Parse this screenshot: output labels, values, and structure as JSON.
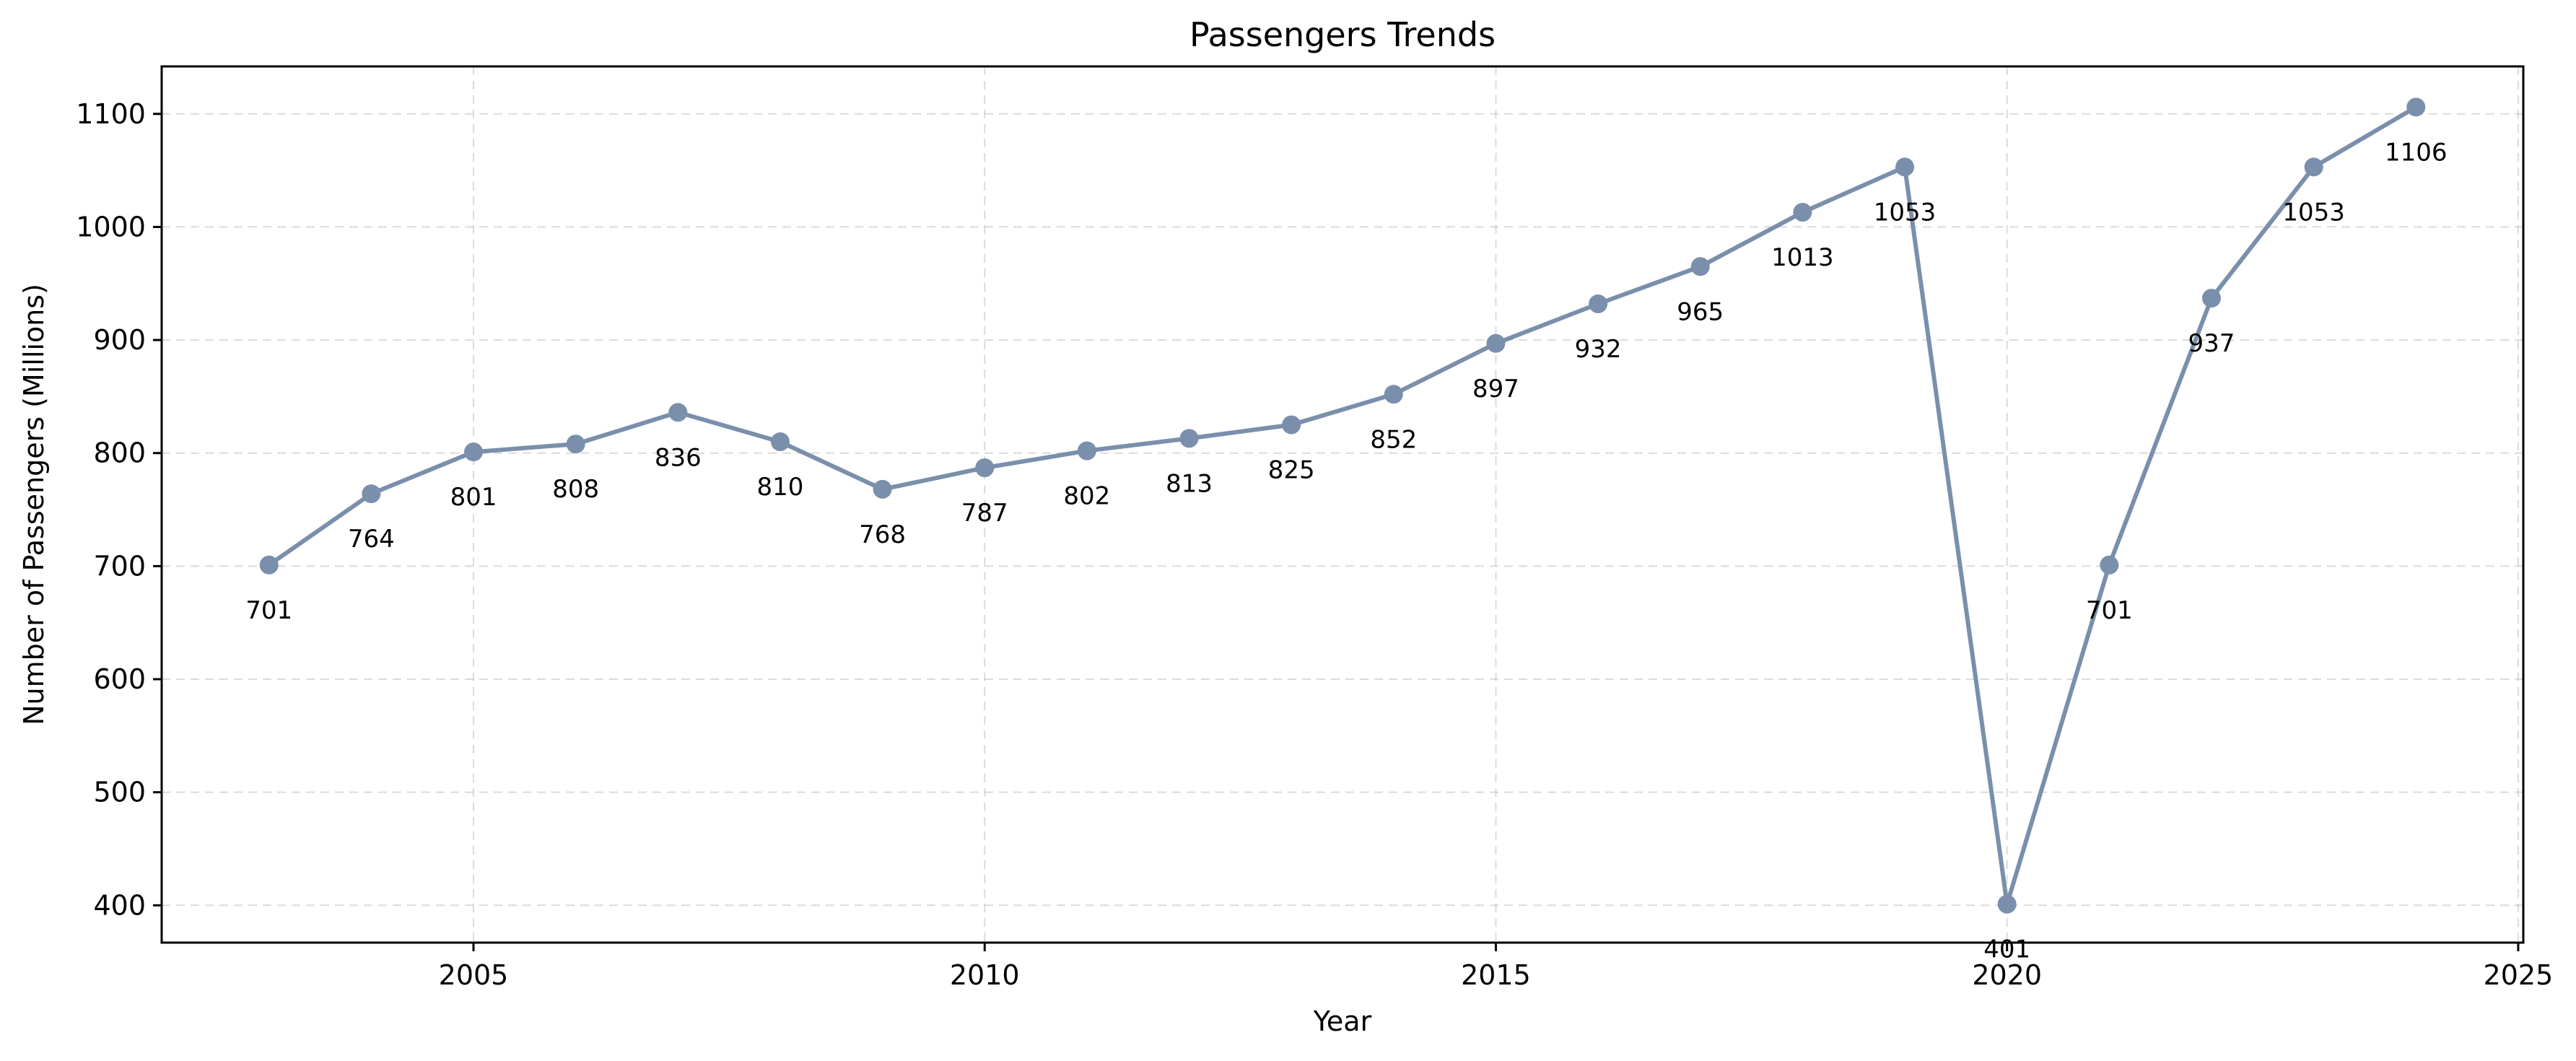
{
  "chart_data": {
    "type": "line",
    "title": "Passengers Trends",
    "xlabel": "Year",
    "ylabel": "Number of Passengers (Millions)",
    "xlim": [
      2001.95,
      2025.05
    ],
    "ylim": [
      367,
      1142
    ],
    "xticks": [
      2005,
      2010,
      2015,
      2020,
      2025
    ],
    "yticks": [
      400,
      500,
      600,
      700,
      800,
      900,
      1000,
      1100
    ],
    "grid": true,
    "legend": "none",
    "series": [
      {
        "color": "#7a8fab",
        "x": [
          2003,
          2004,
          2005,
          2006,
          2007,
          2008,
          2009,
          2010,
          2011,
          2012,
          2013,
          2014,
          2015,
          2016,
          2017,
          2018,
          2019,
          2020,
          2021,
          2022,
          2023,
          2024
        ],
        "values": [
          701,
          764,
          801,
          808,
          836,
          810,
          768,
          787,
          802,
          813,
          825,
          852,
          897,
          932,
          965,
          1013,
          1053,
          401,
          701,
          937,
          1053,
          1106
        ],
        "labels": [
          "701",
          "764",
          "801",
          "808",
          "836",
          "810",
          "768",
          "787",
          "802",
          "813",
          "825",
          "852",
          "897",
          "932",
          "965",
          "1013",
          "1053",
          "401",
          "701",
          "937",
          "1053",
          "1106"
        ]
      }
    ]
  }
}
